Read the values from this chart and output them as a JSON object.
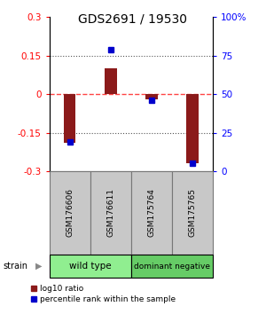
{
  "title": "GDS2691 / 19530",
  "samples": [
    "GSM176606",
    "GSM176611",
    "GSM175764",
    "GSM175765"
  ],
  "log10_ratio": [
    -0.19,
    0.1,
    -0.02,
    -0.27
  ],
  "percentile_rank": [
    19,
    79,
    46,
    5
  ],
  "groups": [
    {
      "label": "wild type",
      "samples": [
        0,
        1
      ],
      "color": "#90EE90"
    },
    {
      "label": "dominant negative",
      "samples": [
        2,
        3
      ],
      "color": "#66CC66"
    }
  ],
  "ylim": [
    -0.3,
    0.3
  ],
  "yticks_left": [
    -0.3,
    -0.15,
    0,
    0.15,
    0.3
  ],
  "yticks_right_vals": [
    0,
    25,
    50,
    75,
    100
  ],
  "yticks_right_labels": [
    "0",
    "25",
    "50",
    "75",
    "100%"
  ],
  "bar_color": "#8B1A1A",
  "dot_color": "#0000CC",
  "zero_line_color": "#FF4444",
  "dotted_line_color": "#555555",
  "label_area_color": "#C8C8C8",
  "label_area_border": "#777777",
  "background_color": "#ffffff",
  "title_fontsize": 10,
  "tick_fontsize": 7.5,
  "bar_width": 0.3
}
